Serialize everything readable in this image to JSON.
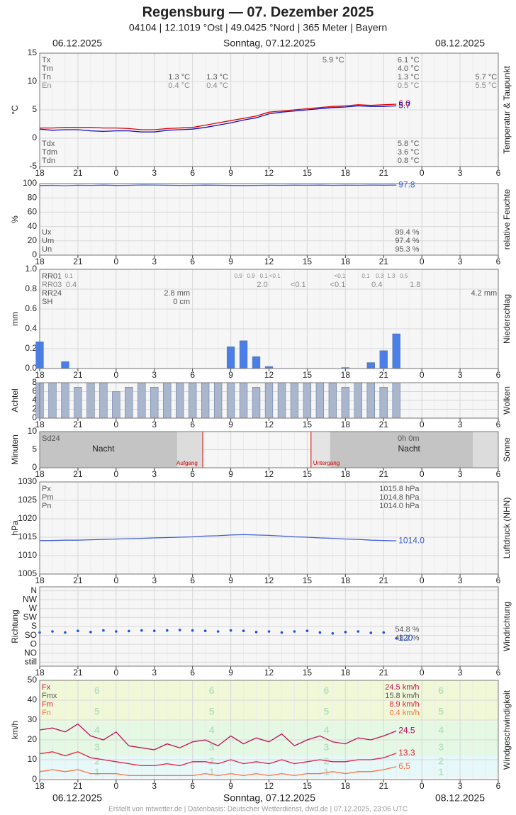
{
  "header": {
    "title": "Regensburg  —  07. Dezember 2025",
    "subtitle": "04104  |  12.1019 °Ost  |  49.0425 °Nord  |  365 Meter  |  Bayern"
  },
  "dates": [
    "06.12.2025",
    "Sonntag, 07.12.2025",
    "08.12.2025"
  ],
  "footer": "Erstellt von mtwetter.de | Datenbasis: Deutscher Wetterdienst, dwd.de | 07.12.2025, 23:06 UTC",
  "time_axis": {
    "xlim": [
      18,
      54
    ],
    "xticks": [
      18,
      21,
      {
        "value": 24,
        "label": "0"
      },
      {
        "value": 27,
        "label": "3"
      },
      {
        "value": 30,
        "label": "6"
      },
      {
        "value": 33,
        "label": "9"
      },
      {
        "value": 36,
        "label": "12"
      },
      {
        "value": 39,
        "label": "15"
      },
      {
        "value": 42,
        "label": "18"
      },
      {
        "value": 45,
        "label": "21"
      },
      {
        "value": 48,
        "label": "0"
      },
      {
        "value": 51,
        "label": "3"
      },
      {
        "value": 54,
        "label": "6"
      }
    ]
  },
  "chart_data": [
    {
      "type": "line",
      "ylabel": "°C",
      "side_label": "Temperatur & Taupunkt",
      "ylim": [
        -5,
        15
      ],
      "yticks": [
        -5,
        0,
        5,
        10,
        15
      ],
      "x": [
        18,
        19,
        20,
        21,
        22,
        23,
        24,
        25,
        26,
        27,
        28,
        29,
        30,
        31,
        32,
        33,
        34,
        35,
        36,
        37,
        38,
        39,
        40,
        41,
        42,
        43,
        44,
        45,
        46
      ],
      "series": [
        {
          "name": "Temperatur",
          "color": "#e00000",
          "end_label": "6.0",
          "values": [
            1.8,
            1.8,
            1.9,
            1.9,
            1.9,
            1.8,
            1.8,
            1.7,
            1.5,
            1.5,
            1.7,
            1.8,
            1.9,
            2.3,
            2.7,
            3.1,
            3.5,
            3.9,
            4.6,
            4.8,
            5.0,
            5.2,
            5.4,
            5.6,
            5.7,
            5.9,
            5.8,
            5.9,
            6.0
          ]
        },
        {
          "name": "Taupunkt",
          "color": "#1010c0",
          "end_label": "5.7",
          "values": [
            1.6,
            1.4,
            1.5,
            1.5,
            1.3,
            1.2,
            1.3,
            1.3,
            1.1,
            1.1,
            1.4,
            1.5,
            1.6,
            1.9,
            2.3,
            2.7,
            3.2,
            3.6,
            4.3,
            4.6,
            4.8,
            5.0,
            5.2,
            5.4,
            5.5,
            5.7,
            5.6,
            5.6,
            5.7
          ]
        }
      ],
      "stats": [
        {
          "name": "Tx",
          "cells": [
            {
              "x": 41.9,
              "text": "5.9 °C"
            },
            {
              "x": 47.8,
              "text": "6.1 °C"
            }
          ]
        },
        {
          "name": "Tm",
          "cells": [
            {
              "x": 47.8,
              "text": "4.0 °C"
            }
          ]
        },
        {
          "name": "Tn",
          "cells": [
            {
              "x": 29.8,
              "text": "1.3 °C"
            },
            {
              "x": 32.8,
              "text": "1.3 °C"
            },
            {
              "x": 47.8,
              "text": "1.3 °C"
            },
            {
              "x": 53.9,
              "text": "5.7 °C"
            }
          ]
        },
        {
          "name": "En",
          "color": "#888888",
          "cells": [
            {
              "x": 29.8,
              "text": "0.4 °C"
            },
            {
              "x": 32.8,
              "text": "0.4 °C"
            },
            {
              "x": 47.8,
              "text": "0.5 °C"
            },
            {
              "x": 53.9,
              "text": "5.5 °C"
            }
          ]
        }
      ],
      "stats_bottom": [
        {
          "name": "Tdx",
          "cells": [
            {
              "x": 47.8,
              "text": "5.8 °C"
            }
          ]
        },
        {
          "name": "Tdm",
          "cells": [
            {
              "x": 47.8,
              "text": "3.6 °C"
            }
          ]
        },
        {
          "name": "Tdn",
          "cells": [
            {
              "x": 47.8,
              "text": "0.8 °C"
            }
          ]
        }
      ]
    },
    {
      "type": "line",
      "ylabel": "%",
      "side_label": "relative Feuchte",
      "ylim": [
        0,
        100
      ],
      "yticks": [
        0,
        20,
        40,
        60,
        80,
        100
      ],
      "x": [
        18,
        19,
        20,
        21,
        22,
        23,
        24,
        25,
        26,
        27,
        28,
        29,
        30,
        31,
        32,
        33,
        34,
        35,
        36,
        37,
        38,
        39,
        40,
        41,
        42,
        43,
        44,
        45,
        46
      ],
      "series": [
        {
          "name": "Feuchte",
          "color": "#4060d0",
          "end_label": "97.8",
          "values": [
            97.2,
            97.5,
            97.0,
            97.6,
            97.4,
            97.8,
            97.3,
            97.5,
            98.0,
            97.9,
            97.6,
            97.4,
            97.5,
            97.8,
            97.6,
            97.3,
            97.2,
            97.4,
            97.6,
            97.5,
            97.7,
            97.6,
            97.8,
            97.5,
            97.7,
            97.6,
            97.8,
            97.7,
            97.8
          ]
        }
      ],
      "stats_bottom": [
        {
          "name": "Ux",
          "cells": [
            {
              "x": 47.8,
              "text": "99.4 %"
            }
          ]
        },
        {
          "name": "Um",
          "cells": [
            {
              "x": 47.8,
              "text": "97.4 %"
            }
          ]
        },
        {
          "name": "Un",
          "cells": [
            {
              "x": 47.8,
              "text": "95.3 %"
            }
          ]
        }
      ]
    },
    {
      "type": "bar",
      "ylabel": "mm",
      "side_label": "Niederschlag",
      "ylim": [
        0,
        1
      ],
      "yticks": [
        {
          "value": 0,
          "label": "0.0"
        },
        0.2,
        0.4,
        0.6,
        0.8,
        {
          "value": 1,
          "label": "1.0"
        }
      ],
      "x": [
        18,
        19,
        20,
        21,
        22,
        23,
        24,
        25,
        26,
        27,
        28,
        29,
        30,
        31,
        32,
        33,
        34,
        35,
        36,
        37,
        38,
        39,
        40,
        41,
        42,
        43,
        44,
        45,
        46
      ],
      "color": "#4a7ee8",
      "values": [
        0.27,
        0,
        0.07,
        0,
        0,
        0,
        0,
        0,
        0,
        0,
        0,
        0,
        0,
        0,
        0,
        0.22,
        0.28,
        0.12,
        0.02,
        0,
        0,
        0,
        0,
        0,
        0.01,
        0,
        0.06,
        0.18,
        0.35
      ],
      "stats": [
        {
          "name": "RR01",
          "small": true,
          "cells": [
            {
              "x": 20.6,
              "text": "0.1"
            },
            {
              "x": 33.9,
              "text": "0.9"
            },
            {
              "x": 34.9,
              "text": "0.9"
            },
            {
              "x": 35.9,
              "text": "0.1"
            },
            {
              "x": 36.9,
              "text": "<0.1"
            },
            {
              "x": 42.0,
              "text": "<0.1"
            },
            {
              "x": 43.9,
              "text": "0.1"
            },
            {
              "x": 45.0,
              "text": "0.3"
            },
            {
              "x": 45.9,
              "text": "1.3"
            },
            {
              "x": 46.9,
              "text": "0.5"
            }
          ]
        },
        {
          "name": "RR03",
          "color": "#888888",
          "cells": [
            {
              "x": 20.9,
              "text": "0.4"
            },
            {
              "x": 35.9,
              "text": "2.0"
            },
            {
              "x": 38.9,
              "text": "<0.1"
            },
            {
              "x": 42.0,
              "text": "<0.1"
            },
            {
              "x": 44.9,
              "text": "0.4"
            },
            {
              "x": 47.9,
              "text": "1.8"
            }
          ]
        },
        {
          "name": "RR24",
          "cells": [
            {
              "x": 29.8,
              "text": "2.8 mm"
            },
            {
              "x": 53.9,
              "text": "4.2 mm"
            }
          ]
        },
        {
          "name": "SH",
          "cells": [
            {
              "x": 29.8,
              "text": "0 cm"
            }
          ]
        }
      ]
    },
    {
      "type": "bar",
      "ylabel": "Achtel",
      "side_label": "Wolken",
      "ylim": [
        0,
        8
      ],
      "yticks": [
        0,
        2,
        4,
        6,
        8
      ],
      "x": [
        18,
        19,
        20,
        21,
        22,
        23,
        24,
        25,
        26,
        27,
        28,
        29,
        30,
        31,
        32,
        33,
        34,
        35,
        36,
        37,
        38,
        39,
        40,
        41,
        42,
        43,
        44,
        45,
        46
      ],
      "color": "#aab6cc",
      "values": [
        8,
        8,
        8,
        7,
        8,
        8,
        6,
        7,
        8,
        7,
        8,
        8,
        8,
        8,
        8,
        8,
        8,
        7,
        8,
        8,
        8,
        8,
        8,
        8,
        7,
        8,
        8,
        7,
        8
      ]
    },
    {
      "type": "sun",
      "ylabel": "Minuten",
      "side_label": "Sonne",
      "ylim": [
        0,
        10
      ],
      "yticks": [
        0,
        5,
        10
      ],
      "sunrise": {
        "x": 30.8,
        "label": "Aufgang"
      },
      "sunset": {
        "x": 39.3,
        "label": "Untergang"
      },
      "night_labels": [
        {
          "x": 23,
          "text": "Nacht"
        },
        {
          "x": 47,
          "text": "Nacht"
        }
      ],
      "stats": [
        {
          "name": "Sd24",
          "cells": [
            {
              "x": 47.8,
              "text": "0h 0m"
            }
          ]
        }
      ]
    },
    {
      "type": "line",
      "ylabel": "hPa",
      "side_label": "Luftdruck (NHN)",
      "ylim": [
        1005,
        1030
      ],
      "yticks": [
        1005,
        1010,
        1015,
        1020,
        1025,
        1030
      ],
      "x": [
        18,
        19,
        20,
        21,
        22,
        23,
        24,
        25,
        26,
        27,
        28,
        29,
        30,
        31,
        32,
        33,
        34,
        35,
        36,
        37,
        38,
        39,
        40,
        41,
        42,
        43,
        44,
        45,
        46
      ],
      "series": [
        {
          "name": "Luftdruck",
          "color": "#4060d0",
          "end_label": "1014.0",
          "values": [
            1014.1,
            1014.1,
            1014.2,
            1014.2,
            1014.3,
            1014.4,
            1014.5,
            1014.6,
            1014.7,
            1014.8,
            1014.9,
            1015.0,
            1015.1,
            1015.3,
            1015.4,
            1015.6,
            1015.7,
            1015.6,
            1015.5,
            1015.3,
            1015.1,
            1015.0,
            1014.8,
            1014.7,
            1014.5,
            1014.4,
            1014.2,
            1014.1,
            1014.0
          ]
        }
      ],
      "stats": [
        {
          "name": "Px",
          "cells": [
            {
              "x": 47.8,
              "text": "1015.8 hPa"
            }
          ]
        },
        {
          "name": "Pm",
          "cells": [
            {
              "x": 47.8,
              "text": "1014.8 hPa"
            }
          ]
        },
        {
          "name": "Pn",
          "cells": [
            {
              "x": 47.8,
              "text": "1014.0 hPa"
            }
          ]
        }
      ]
    },
    {
      "type": "scatter",
      "ylabel": "Richtung",
      "side_label": "Windrichtung",
      "ylim": [
        -20,
        380
      ],
      "yticks": [
        {
          "value": 360,
          "label": "N"
        },
        {
          "value": 315,
          "label": "NW"
        },
        {
          "value": 270,
          "label": "W"
        },
        {
          "value": 225,
          "label": "SW"
        },
        {
          "value": 180,
          "label": "S"
        },
        {
          "value": 135,
          "label": "SO"
        },
        {
          "value": 90,
          "label": "O"
        },
        {
          "value": 45,
          "label": "NO"
        },
        {
          "value": 0,
          "label": "still"
        }
      ],
      "x": [
        18,
        19,
        20,
        21,
        22,
        23,
        24,
        25,
        26,
        27,
        28,
        29,
        30,
        31,
        32,
        33,
        34,
        35,
        36,
        37,
        38,
        39,
        40,
        41,
        42,
        43,
        44,
        45,
        46
      ],
      "color": "#2050e0",
      "values": [
        150,
        155,
        150,
        158,
        152,
        160,
        155,
        157,
        160,
        158,
        160,
        162,
        160,
        158,
        155,
        160,
        158,
        152,
        155,
        150,
        155,
        158,
        150,
        145,
        152,
        155,
        148,
        150,
        120
      ],
      "stats_right": [
        {
          "x": 47.8,
          "text": "54.8 %"
        },
        {
          "x": 47.8,
          "text": "48.2 %"
        }
      ]
    },
    {
      "type": "line",
      "ylabel": "km/h",
      "side_label": "Windgeschwindigkeit",
      "ylim": [
        0,
        50
      ],
      "yticks": [
        0,
        10,
        20,
        30,
        40,
        50
      ],
      "beaufort": {
        "limits": [
          1,
          6,
          12,
          20,
          29,
          39,
          50
        ],
        "labels": [
          "1",
          "2",
          "3",
          "4",
          "5",
          "6"
        ]
      },
      "x": [
        18,
        19,
        20,
        21,
        22,
        23,
        24,
        25,
        26,
        27,
        28,
        29,
        30,
        31,
        32,
        33,
        34,
        35,
        36,
        37,
        38,
        39,
        40,
        41,
        42,
        43,
        44,
        45,
        46
      ],
      "series": [
        {
          "name": "Fx",
          "color": "#c0105a",
          "end_label": "24.5",
          "values": [
            25,
            26,
            24,
            28,
            22,
            20,
            24,
            17,
            16,
            15,
            18,
            16,
            19,
            20,
            17,
            22,
            18,
            21,
            19,
            23,
            17,
            20,
            22,
            19,
            18,
            21,
            20,
            22,
            24.5
          ]
        },
        {
          "name": "Fm",
          "color": "#e02040",
          "end_label": "13.3",
          "values": [
            13,
            14,
            12,
            14,
            11,
            10,
            9,
            8,
            7,
            7,
            8,
            7,
            9,
            9,
            8,
            10,
            8,
            9,
            8,
            10,
            8,
            9,
            10,
            9,
            9,
            10,
            10,
            11,
            13.3
          ]
        },
        {
          "name": "Fn",
          "color": "#ff7040",
          "end_label": "6.5",
          "values": [
            4,
            5,
            4,
            5,
            3,
            3,
            3,
            2,
            2,
            2,
            2,
            2,
            2,
            3,
            2,
            3,
            2,
            3,
            2,
            3,
            2,
            3,
            3,
            4,
            3,
            4,
            4,
            5,
            6.5
          ]
        }
      ],
      "stats": [
        {
          "name": "Fx",
          "color": "#c0105a",
          "cells": [
            {
              "x": 47.8,
              "text": "24.5 km/h"
            }
          ]
        },
        {
          "name": "Fmx",
          "cells": [
            {
              "x": 47.8,
              "text": "15.8 km/h"
            }
          ]
        },
        {
          "name": "Fm",
          "color": "#e02040",
          "cells": [
            {
              "x": 47.8,
              "text": "8.9 km/h"
            }
          ]
        },
        {
          "name": "Fn",
          "color": "#ff7040",
          "cells": [
            {
              "x": 47.8,
              "text": "0.4 km/h"
            }
          ]
        }
      ]
    }
  ]
}
